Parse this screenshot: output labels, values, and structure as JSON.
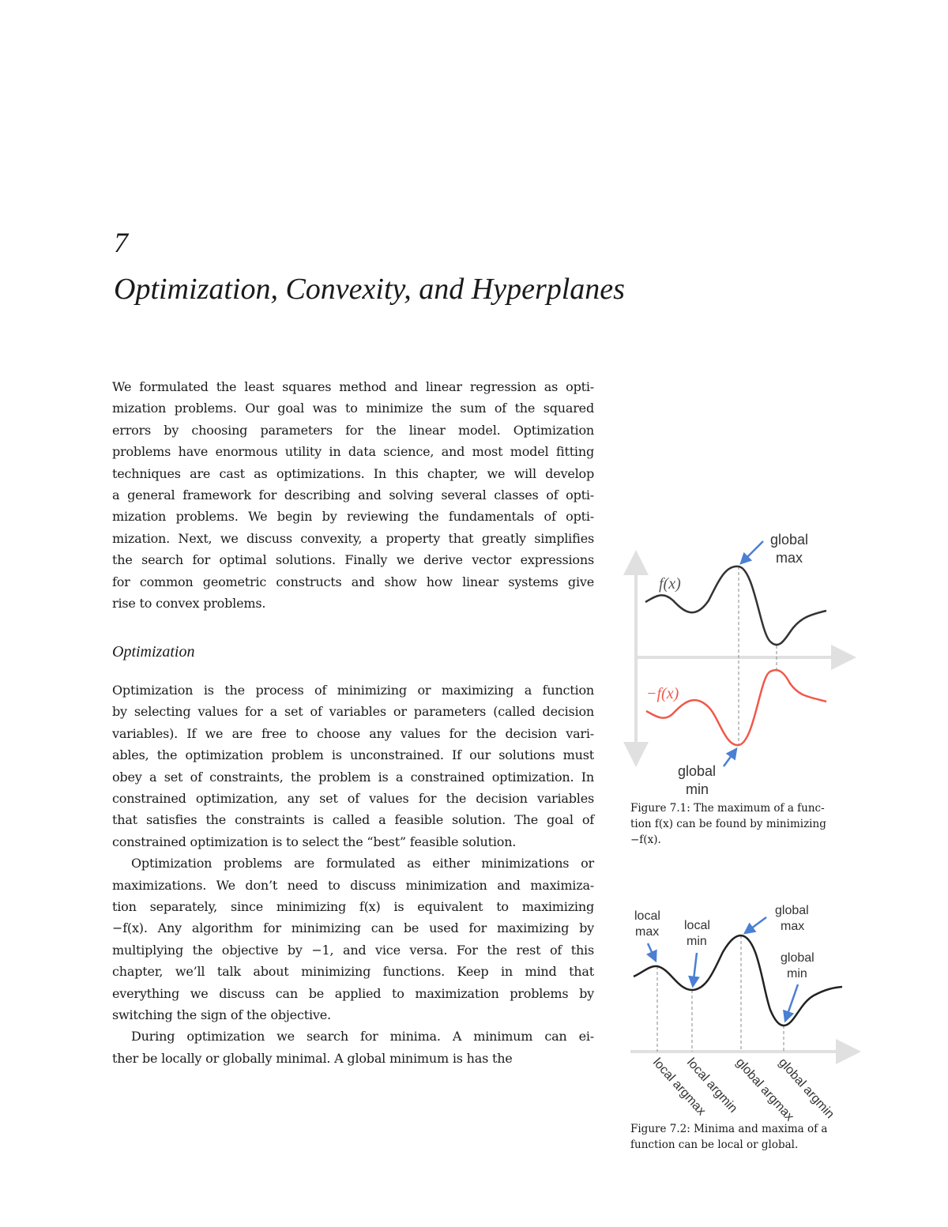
{
  "chapter": {
    "number": "7",
    "title": "Optimization, Convexity, and Hyperplanes"
  },
  "intro_lines": [
    "We formulated the least squares method and linear regression as opti-",
    "mization problems. Our goal was to minimize the sum of the squared",
    "errors by choosing parameters for the linear model. Optimization",
    "problems have enormous utility in data science, and most model fitting",
    "techniques are cast as optimizations. In this chapter, we will develop",
    "a general framework for describing and solving several classes of opti-",
    "mization problems. We begin by reviewing the fundamentals of opti-",
    "mization. Next, we discuss convexity, a property that greatly simplifies",
    "the search for optimal solutions. Finally we derive vector expressions",
    "for common geometric constructs and show how linear systems give",
    "rise to convex problems."
  ],
  "section_title": "Optimization",
  "body_lines": [
    "Optimization is the process of minimizing or maximizing a function",
    "by selecting values for a set of variables or parameters (called decision",
    "variables). If we are free to choose any values for the decision vari-",
    "ables, the optimization problem is unconstrained. If our solutions must",
    "obey a set of constraints, the problem is a constrained optimization. In",
    "constrained optimization, any set of values for the decision variables",
    "that satisfies the constraints is called a feasible solution. The goal of",
    "constrained optimization is to select the “best” feasible solution.",
    "Optimization problems are formulated as either minimizations or",
    "maximizations. We don’t need to discuss minimization and maximiza-",
    "tion separately, since minimizing f(x) is equivalent to maximizing",
    "−f(x). Any algorithm for minimizing can be used for maximizing by",
    "multiplying the objective by −1, and vice versa. For the rest of this",
    "chapter, we’ll talk about minimizing functions. Keep in mind that",
    "everything we discuss can be applied to maximization problems by",
    "switching the sign of the objective.",
    "During optimization we search for minima. A minimum can ei-",
    "ther be locally or globally minimal. A global minimum is has the"
  ],
  "figure1": {
    "f_label": "f(x)",
    "neg_f_label": "−f(x)",
    "max_label": [
      "global",
      "max"
    ],
    "min_label": [
      "global",
      "min"
    ],
    "caption": [
      "Figure 7.1: The maximum of a func-",
      "tion f(x) can be found by minimizing",
      "−f(x)."
    ],
    "colors": {
      "f": "#333333",
      "neg_f": "#f0584a",
      "arrow": "#4a7fd4",
      "axis": "#e0e0e0"
    }
  },
  "figure2": {
    "point_labels": [
      [
        "local",
        "max"
      ],
      [
        "local",
        "min"
      ],
      [
        "global",
        "max"
      ],
      [
        "global",
        "min"
      ]
    ],
    "axis_labels": [
      "local argmax",
      "local argmin",
      "global argmax",
      "global argmin"
    ],
    "caption": [
      "Figure 7.2: Minima and maxima of a",
      "function can be local or global."
    ]
  }
}
